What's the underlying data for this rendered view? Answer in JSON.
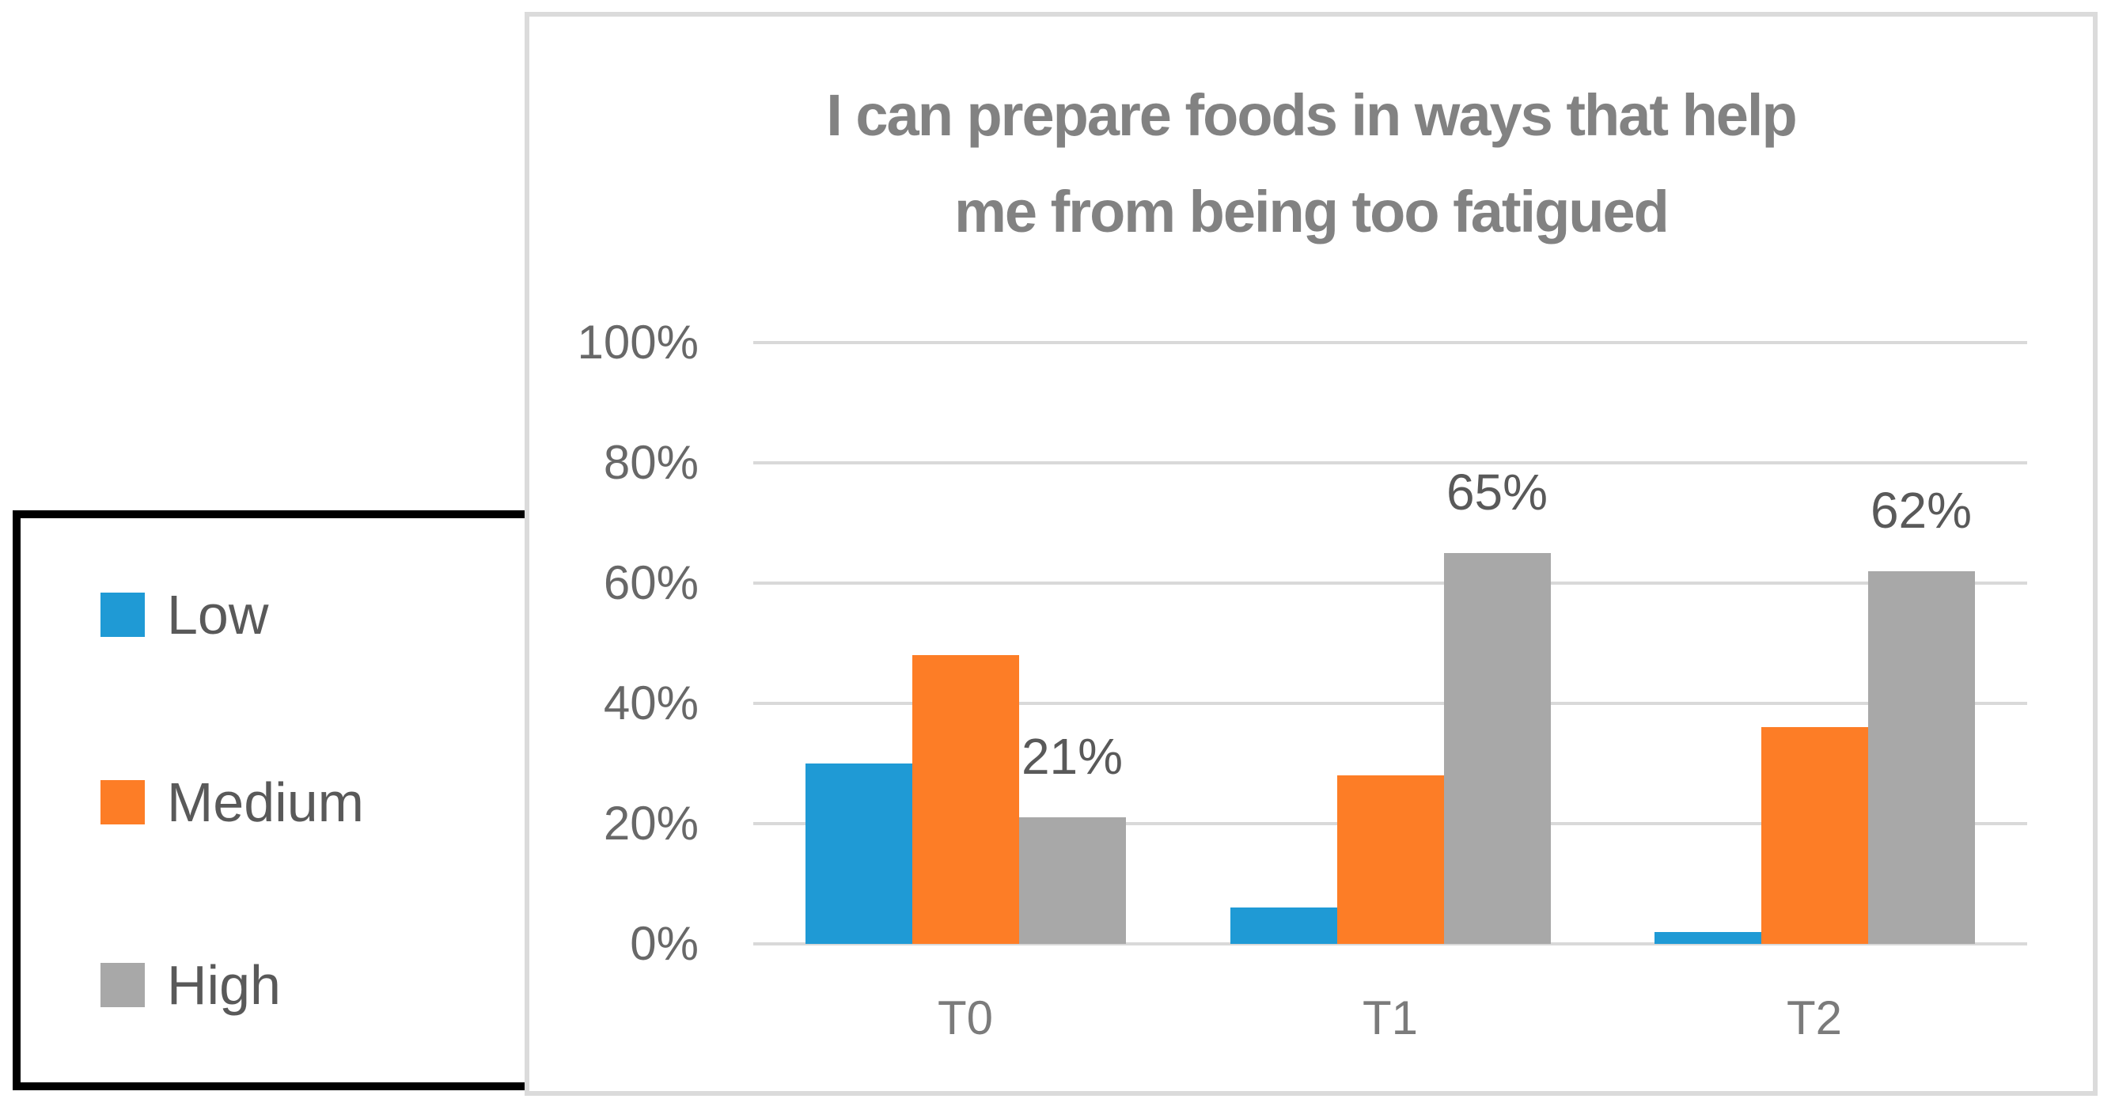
{
  "chart_data": {
    "type": "bar",
    "title_lines": [
      "I can prepare foods in ways that help",
      "me from being too fatigued"
    ],
    "categories": [
      "T0",
      "T1",
      "T2"
    ],
    "series": [
      {
        "name": "Low",
        "color": "#1F9AD5",
        "values": [
          30,
          6,
          2
        ]
      },
      {
        "name": "Medium",
        "color": "#FD7D26",
        "values": [
          48,
          28,
          36
        ]
      },
      {
        "name": "High",
        "color": "#A8A8A8",
        "values": [
          21,
          65,
          62
        ],
        "data_labels": [
          "21%",
          "65%",
          "62%"
        ]
      }
    ],
    "y_axis": {
      "min": 0,
      "max": 100,
      "tick_step": 20,
      "ticks": [
        "0%",
        "20%",
        "40%",
        "60%",
        "80%",
        "100%"
      ],
      "grid": true
    },
    "x_axis": {
      "labels": [
        "T0",
        "T1",
        "T2"
      ]
    },
    "legend": {
      "position": "left-outside",
      "labels": [
        "Low",
        "Medium",
        "High"
      ]
    }
  },
  "colors": {
    "bar_low": "#1F9AD5",
    "bar_medium": "#FD7D26",
    "bar_high": "#A8A8A8",
    "gridline": "#D9D9D9",
    "chart_border": "#DBDBDB",
    "legend_border": "#000000",
    "title_text": "#828282",
    "axis_text": "#686868",
    "data_label_text": "#595959",
    "legend_text": "#595959",
    "background": "#FFFFFF"
  }
}
